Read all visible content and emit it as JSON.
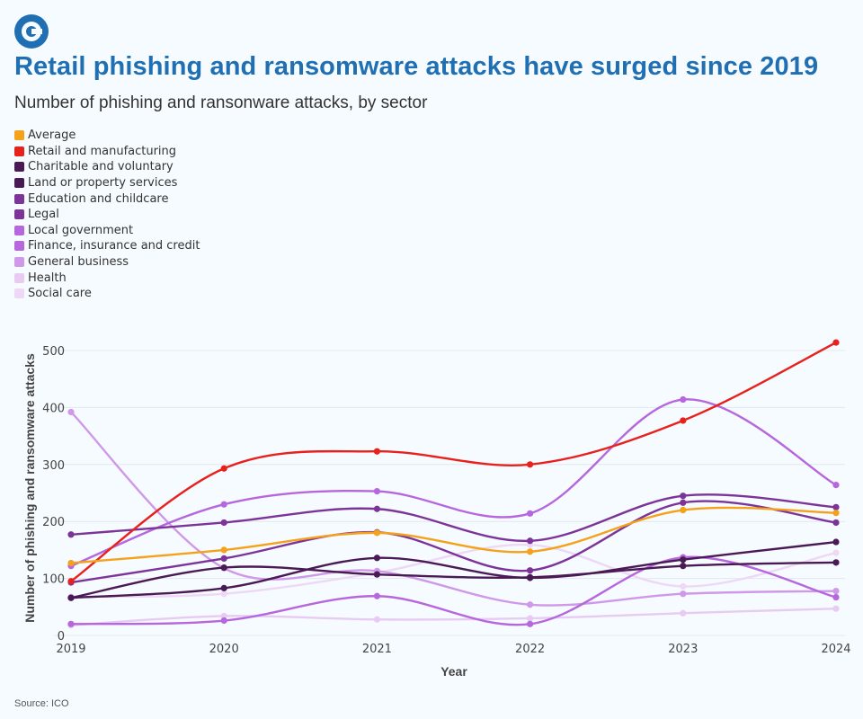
{
  "header": {
    "title": "Retail phishing and ransomware attacks have surged since 2019",
    "subtitle": "Number of phishing and ransonware attacks, by sector"
  },
  "footer": {
    "source": "Source: ICO"
  },
  "colors": {
    "title": "#1f6fb2",
    "logo": "#1f6fb2",
    "background": "#f5fbff"
  },
  "chart_data": {
    "type": "line",
    "title": "Retail phishing and ransomware attacks have surged since 2019",
    "subtitle": "Number of phishing and ransonware attacks, by sector",
    "xlabel": "Year",
    "ylabel": "Number of phishing and ransomware attacks",
    "x": [
      "2019",
      "2020",
      "2021",
      "2022",
      "2023",
      "2024"
    ],
    "ylim": [
      0,
      500
    ],
    "yticks": [
      0,
      100,
      200,
      300,
      400,
      500
    ],
    "grid": "horizontal",
    "legend_position": "top-left",
    "series": [
      {
        "name": "Average",
        "color": "#f5a21b",
        "values": [
          127,
          150,
          180,
          147,
          220,
          215
        ]
      },
      {
        "name": "Retail and manufacturing",
        "color": "#e8211c",
        "values": [
          95,
          293,
          323,
          300,
          377,
          514
        ]
      },
      {
        "name": "Charitable and voluntary",
        "color": "#4a1a55",
        "values": [
          66,
          83,
          136,
          101,
          133,
          164
        ]
      },
      {
        "name": "Land or property services",
        "color": "#4a1a55",
        "values": [
          66,
          119,
          107,
          102,
          122,
          128
        ]
      },
      {
        "name": "Education and childcare",
        "color": "#7d3499",
        "values": [
          93,
          135,
          181,
          114,
          233,
          198
        ]
      },
      {
        "name": "Legal",
        "color": "#7d3499",
        "values": [
          177,
          198,
          222,
          166,
          245,
          225
        ]
      },
      {
        "name": "Local government",
        "color": "#b667dd",
        "values": [
          122,
          230,
          253,
          214,
          414,
          264
        ]
      },
      {
        "name": "Finance, insurance and credit",
        "color": "#b667dd",
        "values": [
          20,
          26,
          69,
          20,
          137,
          67
        ]
      },
      {
        "name": "General business",
        "color": "#cf98e8",
        "values": [
          392,
          118,
          113,
          54,
          73,
          78
        ]
      },
      {
        "name": "Health",
        "color": "#e8cbf2",
        "values": [
          18,
          34,
          28,
          30,
          39,
          47
        ]
      },
      {
        "name": "Social care",
        "color": "#eed8f5",
        "values": [
          68,
          73,
          110,
          159,
          86,
          145
        ]
      }
    ]
  }
}
